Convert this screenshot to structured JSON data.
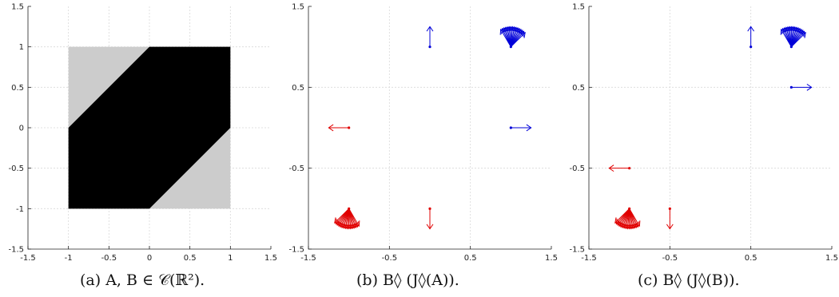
{
  "colors": {
    "black": "#000000",
    "gray": "#cccccc",
    "blue": "#0000d8",
    "red": "#e00000"
  },
  "chart_data": [
    {
      "type": "area",
      "caption": "(a) A, B ∈ 𝒞(ℝ²).",
      "xlim": [
        -1.5,
        1.5
      ],
      "ylim": [
        -1.5,
        1.5
      ],
      "xticks": [
        -1.5,
        -1,
        -0.5,
        0,
        0.5,
        1,
        1.5
      ],
      "xtick_labels": [
        "-1.5",
        "-1",
        "-0.5",
        "0",
        "0.5",
        "1",
        "1.5"
      ],
      "yticks": [
        -1.5,
        -1,
        -0.5,
        0,
        0.5,
        1,
        1.5
      ],
      "ytick_labels": [
        "-1.5",
        "-1",
        "-0.5",
        "0",
        "0.5",
        "1",
        "1.5"
      ],
      "grid": true,
      "regions": [
        {
          "name": "B",
          "color": "#cccccc",
          "polygon": [
            [
              -1,
              -1
            ],
            [
              1,
              -1
            ],
            [
              1,
              1
            ],
            [
              -1,
              1
            ]
          ]
        },
        {
          "name": "A",
          "color": "#000000",
          "polygon": [
            [
              -1,
              -1
            ],
            [
              0,
              -1
            ],
            [
              1,
              0
            ],
            [
              1,
              1
            ],
            [
              0,
              1
            ],
            [
              -1,
              0
            ]
          ]
        }
      ]
    },
    {
      "type": "scatter",
      "caption": "(b) B◊ (J◊(A)).",
      "xlim": [
        -1.5,
        1.5
      ],
      "ylim": [
        -1.5,
        1.5
      ],
      "xticks": [
        -1.5,
        -0.5,
        0.5,
        1.5
      ],
      "xtick_labels": [
        "-1.5",
        "-0.5",
        "0.5",
        "1.5"
      ],
      "yticks": [
        -1.5,
        -0.5,
        0.5,
        1.5
      ],
      "ytick_labels": [
        "-1.5",
        "-0.5",
        "0.5",
        "1.5"
      ],
      "grid": true,
      "arrow_length": 0.25,
      "arrows": [
        {
          "x": 0,
          "y": 1,
          "angles": [
            90
          ],
          "color": "#0000d8"
        },
        {
          "x": 1,
          "y": 1,
          "angles": [
            45,
            50,
            55,
            60,
            65,
            70,
            75,
            80,
            85,
            90,
            95,
            100,
            105,
            110,
            115,
            120
          ],
          "color": "#0000d8"
        },
        {
          "x": 1,
          "y": 0,
          "angles": [
            0
          ],
          "color": "#0000d8"
        },
        {
          "x": -1,
          "y": 0,
          "angles": [
            180
          ],
          "color": "#e00000"
        },
        {
          "x": 0,
          "y": -1,
          "angles": [
            270
          ],
          "color": "#e00000"
        },
        {
          "x": -1,
          "y": -1,
          "angles": [
            225,
            230,
            235,
            240,
            245,
            250,
            255,
            260,
            265,
            270,
            275,
            280,
            285,
            290,
            295,
            300
          ],
          "color": "#e00000"
        }
      ]
    },
    {
      "type": "scatter",
      "caption": "(c) B◊ (J◊(B)).",
      "xlim": [
        -1.5,
        1.5
      ],
      "ylim": [
        -1.5,
        1.5
      ],
      "xticks": [
        -1.5,
        -0.5,
        0.5,
        1.5
      ],
      "xtick_labels": [
        "-1.5",
        "-0.5",
        "0.5",
        "1.5"
      ],
      "yticks": [
        -1.5,
        -0.5,
        0.5,
        1.5
      ],
      "ytick_labels": [
        "-1.5",
        "-0.5",
        "0.5",
        "1.5"
      ],
      "grid": true,
      "arrow_length": 0.25,
      "arrows": [
        {
          "x": 0.5,
          "y": 1,
          "angles": [
            90
          ],
          "color": "#0000d8"
        },
        {
          "x": 1,
          "y": 1,
          "angles": [
            45,
            50,
            55,
            60,
            65,
            70,
            75,
            80,
            85,
            90,
            95,
            100,
            105,
            110,
            115,
            120
          ],
          "color": "#0000d8"
        },
        {
          "x": 1,
          "y": 0.5,
          "angles": [
            0
          ],
          "color": "#0000d8"
        },
        {
          "x": -1,
          "y": -0.5,
          "angles": [
            180
          ],
          "color": "#e00000"
        },
        {
          "x": -0.5,
          "y": -1,
          "angles": [
            270
          ],
          "color": "#e00000"
        },
        {
          "x": -1,
          "y": -1,
          "angles": [
            225,
            230,
            235,
            240,
            245,
            250,
            255,
            260,
            265,
            270,
            275,
            280,
            285,
            290,
            295,
            300
          ],
          "color": "#e00000"
        }
      ]
    }
  ]
}
